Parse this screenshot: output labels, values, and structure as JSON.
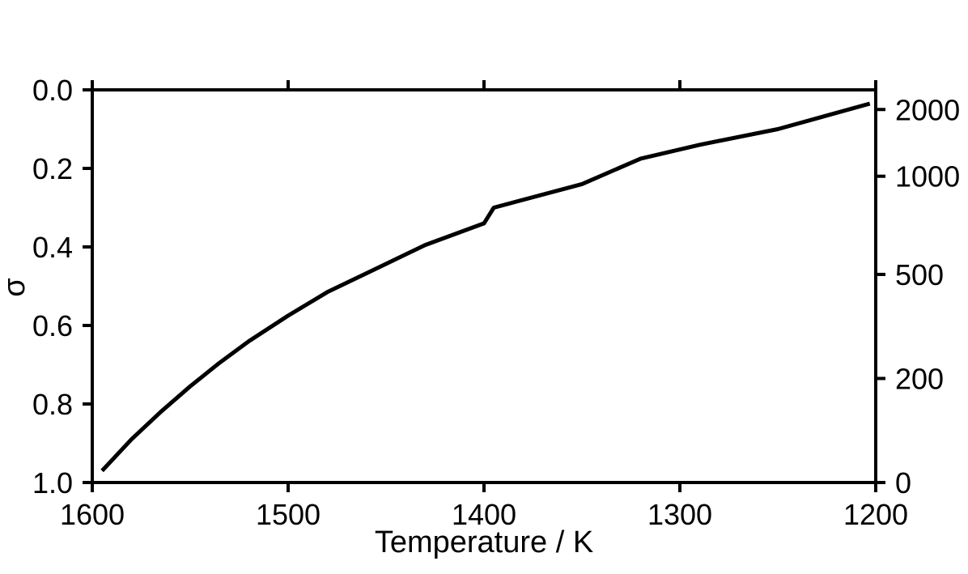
{
  "chart_data": {
    "type": "line",
    "title": "",
    "xlabel": "Temperature / K",
    "ylabel": "σ",
    "xlim": [
      1600,
      1200
    ],
    "x_reversed": true,
    "ylim": [
      1.0,
      0.0
    ],
    "y_inverted": true,
    "x_ticks": [
      1600,
      1500,
      1400,
      1300,
      1200
    ],
    "x_tick_labels": [
      "1600",
      "1500",
      "1400",
      "1300",
      "1200"
    ],
    "y_ticks": [
      0.0,
      0.2,
      0.4,
      0.6,
      0.8,
      1.0
    ],
    "y_tick_labels": [
      "0.0",
      "0.2",
      "0.4",
      "0.6",
      "0.8",
      "1.0"
    ],
    "right_axis": {
      "tick_labels": [
        "2000",
        "1000",
        "500",
        "200",
        "0"
      ],
      "tick_sigma_positions": [
        0.05,
        0.22,
        0.47,
        0.735,
        1.0
      ]
    },
    "top_axis_ticks": [
      1600,
      1500,
      1400,
      1300,
      1200
    ],
    "grid": false,
    "legend": "none",
    "series": [
      {
        "color": "#000000",
        "x": [
          1595,
          1580,
          1565,
          1550,
          1535,
          1520,
          1500,
          1480,
          1455,
          1430,
          1400,
          1395,
          1350,
          1320,
          1290,
          1250,
          1203
        ],
        "y": [
          0.97,
          0.89,
          0.82,
          0.755,
          0.695,
          0.64,
          0.575,
          0.515,
          0.455,
          0.395,
          0.34,
          0.3,
          0.24,
          0.175,
          0.14,
          0.1,
          0.035
        ]
      }
    ]
  }
}
